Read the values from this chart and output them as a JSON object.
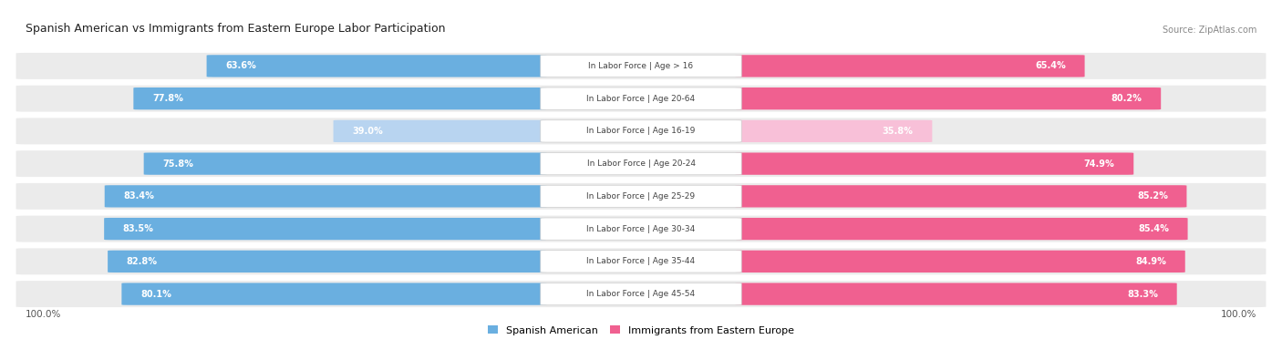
{
  "title": "Spanish American vs Immigrants from Eastern Europe Labor Participation",
  "source": "Source: ZipAtlas.com",
  "categories": [
    "In Labor Force | Age > 16",
    "In Labor Force | Age 20-64",
    "In Labor Force | Age 16-19",
    "In Labor Force | Age 20-24",
    "In Labor Force | Age 25-29",
    "In Labor Force | Age 30-34",
    "In Labor Force | Age 35-44",
    "In Labor Force | Age 45-54"
  ],
  "spanish_american": [
    63.6,
    77.8,
    39.0,
    75.8,
    83.4,
    83.5,
    82.8,
    80.1
  ],
  "eastern_europe": [
    65.4,
    80.2,
    35.8,
    74.9,
    85.2,
    85.4,
    84.9,
    83.3
  ],
  "blue_color": "#6aafe0",
  "pink_color": "#f06090",
  "blue_light": "#b8d4f0",
  "pink_light": "#f8c0d8",
  "row_bg": "#ebebeb",
  "label_color": "#444444",
  "title_color": "#222222",
  "source_color": "#888888",
  "max_val": 100.0,
  "legend_blue": "Spanish American",
  "legend_pink": "Immigrants from Eastern Europe",
  "bottom_label": "100.0%"
}
